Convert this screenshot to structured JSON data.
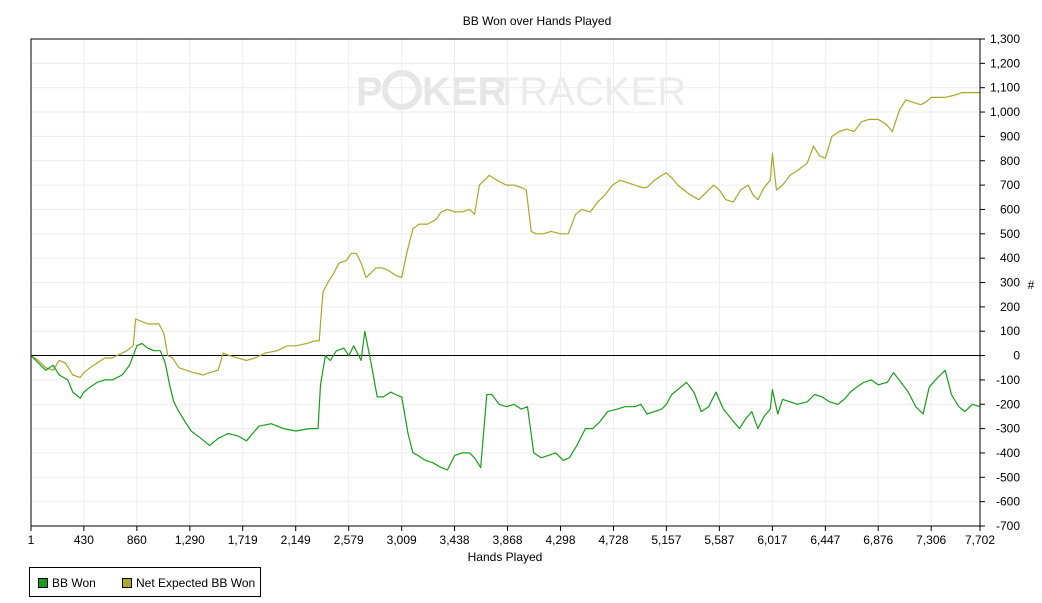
{
  "chart_data": {
    "type": "line",
    "title": "BB Won over Hands Played",
    "watermark": {
      "part1": "P",
      "part2": "KER",
      "part3": "TRACKER"
    },
    "xlabel": "Hands Played",
    "ylabel": "#",
    "xlim": [
      1,
      7702
    ],
    "ylim": [
      -700,
      1300
    ],
    "x_ticks": [
      "1",
      "430",
      "860",
      "1,290",
      "1,719",
      "2,149",
      "2,579",
      "3,009",
      "3,438",
      "3,868",
      "4,298",
      "4,728",
      "5,157",
      "5,587",
      "6,017",
      "6,447",
      "6,876",
      "7,306",
      "7,702"
    ],
    "x_tick_values": [
      1,
      430,
      860,
      1290,
      1719,
      2149,
      2579,
      3009,
      3438,
      3868,
      4298,
      4728,
      5157,
      5587,
      6017,
      6447,
      6876,
      7306,
      7702
    ],
    "y_ticks": [
      "1,300",
      "1,200",
      "1,100",
      "1,000",
      "900",
      "800",
      "700",
      "600",
      "500",
      "400",
      "300",
      "200",
      "100",
      "0",
      "-100",
      "-200",
      "-300",
      "-400",
      "-500",
      "-600",
      "-700"
    ],
    "y_tick_values": [
      1300,
      1200,
      1100,
      1000,
      900,
      800,
      700,
      600,
      500,
      400,
      300,
      200,
      100,
      0,
      -100,
      -200,
      -300,
      -400,
      -500,
      -600,
      -700
    ],
    "grid": true,
    "legend_position": "bottom-left",
    "series": [
      {
        "name": "BB Won",
        "color": "#1a9c1a",
        "points": [
          [
            1,
            0
          ],
          [
            60,
            -30
          ],
          [
            120,
            -60
          ],
          [
            180,
            -40
          ],
          [
            230,
            -80
          ],
          [
            300,
            -100
          ],
          [
            340,
            -150
          ],
          [
            400,
            -175
          ],
          [
            430,
            -150
          ],
          [
            480,
            -130
          ],
          [
            540,
            -110
          ],
          [
            600,
            -100
          ],
          [
            660,
            -100
          ],
          [
            740,
            -80
          ],
          [
            800,
            -40
          ],
          [
            860,
            40
          ],
          [
            900,
            50
          ],
          [
            950,
            30
          ],
          [
            1000,
            20
          ],
          [
            1050,
            20
          ],
          [
            1090,
            -30
          ],
          [
            1130,
            -130
          ],
          [
            1160,
            -190
          ],
          [
            1200,
            -230
          ],
          [
            1250,
            -270
          ],
          [
            1300,
            -310
          ],
          [
            1380,
            -340
          ],
          [
            1450,
            -370
          ],
          [
            1520,
            -340
          ],
          [
            1600,
            -320
          ],
          [
            1680,
            -330
          ],
          [
            1750,
            -350
          ],
          [
            1800,
            -320
          ],
          [
            1850,
            -290
          ],
          [
            1950,
            -280
          ],
          [
            2050,
            -300
          ],
          [
            2150,
            -310
          ],
          [
            2260,
            -300
          ],
          [
            2330,
            -300
          ],
          [
            2350,
            -120
          ],
          [
            2390,
            0
          ],
          [
            2430,
            -20
          ],
          [
            2480,
            20
          ],
          [
            2540,
            30
          ],
          [
            2580,
            0
          ],
          [
            2620,
            40
          ],
          [
            2680,
            -20
          ],
          [
            2710,
            100
          ],
          [
            2760,
            -30
          ],
          [
            2810,
            -170
          ],
          [
            2860,
            -170
          ],
          [
            2920,
            -150
          ],
          [
            2960,
            -160
          ],
          [
            3009,
            -170
          ],
          [
            3060,
            -320
          ],
          [
            3100,
            -400
          ],
          [
            3140,
            -410
          ],
          [
            3200,
            -430
          ],
          [
            3260,
            -440
          ],
          [
            3330,
            -460
          ],
          [
            3380,
            -470
          ],
          [
            3440,
            -410
          ],
          [
            3500,
            -400
          ],
          [
            3560,
            -400
          ],
          [
            3600,
            -420
          ],
          [
            3650,
            -460
          ],
          [
            3700,
            -160
          ],
          [
            3740,
            -160
          ],
          [
            3800,
            -200
          ],
          [
            3860,
            -210
          ],
          [
            3920,
            -200
          ],
          [
            3980,
            -220
          ],
          [
            4030,
            -210
          ],
          [
            4080,
            -400
          ],
          [
            4140,
            -420
          ],
          [
            4200,
            -410
          ],
          [
            4260,
            -400
          ],
          [
            4320,
            -430
          ],
          [
            4370,
            -420
          ],
          [
            4430,
            -370
          ],
          [
            4500,
            -300
          ],
          [
            4560,
            -300
          ],
          [
            4620,
            -270
          ],
          [
            4680,
            -230
          ],
          [
            4760,
            -220
          ],
          [
            4820,
            -210
          ],
          [
            4900,
            -210
          ],
          [
            4950,
            -200
          ],
          [
            5000,
            -240
          ],
          [
            5060,
            -230
          ],
          [
            5120,
            -220
          ],
          [
            5157,
            -200
          ],
          [
            5200,
            -160
          ],
          [
            5250,
            -140
          ],
          [
            5320,
            -110
          ],
          [
            5380,
            -150
          ],
          [
            5440,
            -230
          ],
          [
            5500,
            -210
          ],
          [
            5560,
            -150
          ],
          [
            5620,
            -220
          ],
          [
            5700,
            -270
          ],
          [
            5750,
            -300
          ],
          [
            5800,
            -260
          ],
          [
            5850,
            -230
          ],
          [
            5900,
            -300
          ],
          [
            5950,
            -250
          ],
          [
            6000,
            -220
          ],
          [
            6017,
            -140
          ],
          [
            6060,
            -240
          ],
          [
            6100,
            -180
          ],
          [
            6160,
            -190
          ],
          [
            6220,
            -200
          ],
          [
            6300,
            -190
          ],
          [
            6360,
            -160
          ],
          [
            6420,
            -170
          ],
          [
            6480,
            -190
          ],
          [
            6550,
            -200
          ],
          [
            6600,
            -180
          ],
          [
            6650,
            -150
          ],
          [
            6700,
            -130
          ],
          [
            6760,
            -110
          ],
          [
            6820,
            -100
          ],
          [
            6876,
            -120
          ],
          [
            6950,
            -110
          ],
          [
            7000,
            -70
          ],
          [
            7060,
            -110
          ],
          [
            7120,
            -150
          ],
          [
            7180,
            -210
          ],
          [
            7240,
            -240
          ],
          [
            7290,
            -130
          ],
          [
            7340,
            -100
          ],
          [
            7380,
            -80
          ],
          [
            7420,
            -60
          ],
          [
            7470,
            -160
          ],
          [
            7530,
            -210
          ],
          [
            7580,
            -230
          ],
          [
            7640,
            -200
          ],
          [
            7702,
            -210
          ]
        ]
      },
      {
        "name": "Net Expected BB Won",
        "color": "#a8a82a",
        "points": [
          [
            1,
            0
          ],
          [
            60,
            -20
          ],
          [
            120,
            -50
          ],
          [
            180,
            -60
          ],
          [
            230,
            -20
          ],
          [
            280,
            -30
          ],
          [
            340,
            -80
          ],
          [
            400,
            -90
          ],
          [
            430,
            -70
          ],
          [
            480,
            -50
          ],
          [
            540,
            -30
          ],
          [
            600,
            -10
          ],
          [
            660,
            -10
          ],
          [
            740,
            10
          ],
          [
            780,
            20
          ],
          [
            830,
            40
          ],
          [
            850,
            150
          ],
          [
            900,
            140
          ],
          [
            950,
            130
          ],
          [
            1000,
            130
          ],
          [
            1040,
            130
          ],
          [
            1080,
            90
          ],
          [
            1110,
            0
          ],
          [
            1150,
            -10
          ],
          [
            1200,
            -50
          ],
          [
            1260,
            -60
          ],
          [
            1320,
            -70
          ],
          [
            1400,
            -80
          ],
          [
            1450,
            -70
          ],
          [
            1520,
            -60
          ],
          [
            1560,
            10
          ],
          [
            1610,
            0
          ],
          [
            1680,
            -10
          ],
          [
            1750,
            -20
          ],
          [
            1820,
            -10
          ],
          [
            1900,
            10
          ],
          [
            2000,
            20
          ],
          [
            2080,
            40
          ],
          [
            2150,
            40
          ],
          [
            2240,
            50
          ],
          [
            2300,
            60
          ],
          [
            2340,
            60
          ],
          [
            2370,
            260
          ],
          [
            2410,
            300
          ],
          [
            2460,
            340
          ],
          [
            2500,
            380
          ],
          [
            2560,
            390
          ],
          [
            2600,
            420
          ],
          [
            2640,
            420
          ],
          [
            2680,
            380
          ],
          [
            2720,
            320
          ],
          [
            2760,
            340
          ],
          [
            2800,
            360
          ],
          [
            2850,
            360
          ],
          [
            2900,
            350
          ],
          [
            2960,
            330
          ],
          [
            3009,
            320
          ],
          [
            3050,
            420
          ],
          [
            3100,
            520
          ],
          [
            3150,
            540
          ],
          [
            3220,
            540
          ],
          [
            3290,
            560
          ],
          [
            3330,
            590
          ],
          [
            3380,
            600
          ],
          [
            3440,
            590
          ],
          [
            3500,
            590
          ],
          [
            3560,
            600
          ],
          [
            3600,
            580
          ],
          [
            3640,
            700
          ],
          [
            3680,
            720
          ],
          [
            3720,
            740
          ],
          [
            3780,
            720
          ],
          [
            3860,
            700
          ],
          [
            3920,
            700
          ],
          [
            3980,
            690
          ],
          [
            4020,
            680
          ],
          [
            4060,
            510
          ],
          [
            4100,
            500
          ],
          [
            4160,
            500
          ],
          [
            4220,
            510
          ],
          [
            4300,
            500
          ],
          [
            4360,
            500
          ],
          [
            4420,
            580
          ],
          [
            4470,
            600
          ],
          [
            4540,
            590
          ],
          [
            4600,
            630
          ],
          [
            4660,
            660
          ],
          [
            4720,
            700
          ],
          [
            4780,
            720
          ],
          [
            4840,
            710
          ],
          [
            4900,
            700
          ],
          [
            4960,
            690
          ],
          [
            5000,
            690
          ],
          [
            5060,
            720
          ],
          [
            5120,
            740
          ],
          [
            5157,
            750
          ],
          [
            5200,
            730
          ],
          [
            5250,
            700
          ],
          [
            5300,
            680
          ],
          [
            5350,
            660
          ],
          [
            5420,
            640
          ],
          [
            5480,
            670
          ],
          [
            5540,
            700
          ],
          [
            5587,
            680
          ],
          [
            5640,
            640
          ],
          [
            5700,
            630
          ],
          [
            5760,
            680
          ],
          [
            5820,
            700
          ],
          [
            5860,
            660
          ],
          [
            5900,
            640
          ],
          [
            5950,
            690
          ],
          [
            6000,
            720
          ],
          [
            6017,
            830
          ],
          [
            6050,
            680
          ],
          [
            6100,
            700
          ],
          [
            6160,
            740
          ],
          [
            6220,
            760
          ],
          [
            6300,
            790
          ],
          [
            6350,
            860
          ],
          [
            6400,
            820
          ],
          [
            6447,
            810
          ],
          [
            6500,
            900
          ],
          [
            6560,
            920
          ],
          [
            6620,
            930
          ],
          [
            6680,
            920
          ],
          [
            6740,
            960
          ],
          [
            6800,
            970
          ],
          [
            6876,
            970
          ],
          [
            6940,
            950
          ],
          [
            6990,
            920
          ],
          [
            7050,
            1010
          ],
          [
            7100,
            1050
          ],
          [
            7160,
            1040
          ],
          [
            7220,
            1030
          ],
          [
            7260,
            1040
          ],
          [
            7306,
            1060
          ],
          [
            7360,
            1060
          ],
          [
            7420,
            1060
          ],
          [
            7500,
            1070
          ],
          [
            7560,
            1080
          ],
          [
            7620,
            1080
          ],
          [
            7702,
            1080
          ]
        ]
      }
    ]
  }
}
